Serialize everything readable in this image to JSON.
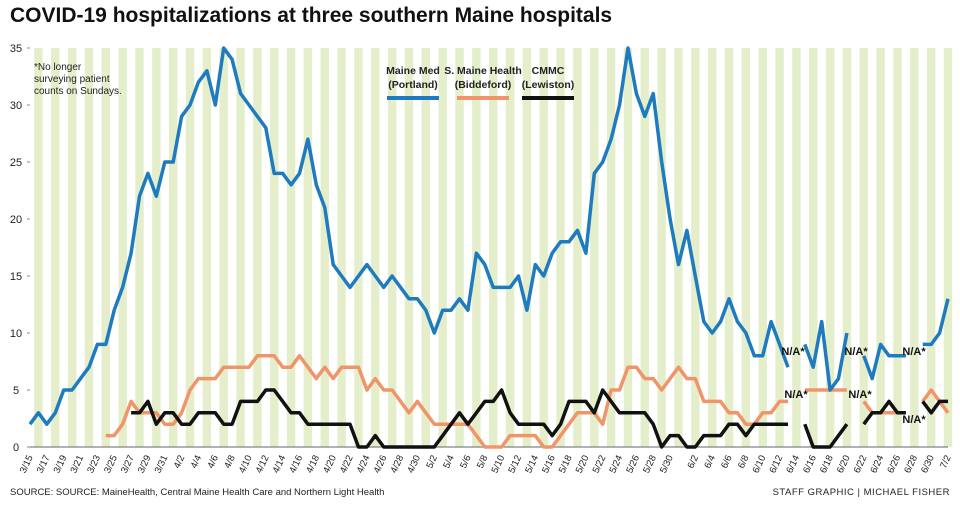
{
  "chart_data": {
    "type": "line",
    "title": "COVID-19 hospitalizations at three southern Maine hospitals",
    "note": "*No longer surveying patient counts on Sundays.",
    "source": "SOURCE: SOURCE: MaineHealth, Central Maine Health Care and Northern Light Health",
    "credit": "STAFF GRAPHIC | MICHAEL FISHER",
    "categories": [
      "3/15",
      null,
      "3/17",
      null,
      "3/19",
      null,
      "3/21",
      null,
      "3/23",
      null,
      "3/25",
      null,
      "3/27",
      null,
      "3/29",
      null,
      "3/31",
      null,
      "4/2",
      null,
      "4/4",
      null,
      "4/6",
      null,
      "4/8",
      null,
      "4/10",
      null,
      "4/12",
      null,
      "4/14",
      null,
      "4/16",
      null,
      "4/18",
      null,
      "4/20",
      null,
      "4/22",
      null,
      "4/24",
      null,
      "4/26",
      null,
      "4/28",
      null,
      "4/30",
      null,
      "5/2",
      null,
      "5/4",
      null,
      "5/6",
      null,
      "5/8",
      null,
      "5/10",
      null,
      "5/12",
      null,
      "5/14",
      null,
      "5/16",
      null,
      "5/18",
      null,
      "5/20",
      null,
      "5/22",
      null,
      "5/24",
      null,
      "5/26",
      null,
      "5/28",
      null,
      "5/30",
      null,
      null,
      "6/2",
      null,
      "6/4",
      null,
      "6/6",
      null,
      "6/8",
      null,
      "6/10",
      null,
      "6/12",
      null,
      "6/14",
      null,
      "6/16",
      null,
      "6/18",
      null,
      "6/20",
      null,
      "6/22",
      null,
      "6/24",
      null,
      "6/26",
      null,
      "6/28",
      null,
      "6/30",
      null,
      "7/2"
    ],
    "series": [
      {
        "name": "Maine Med",
        "location": "(Portland)",
        "color": "#1f7bbf",
        "values": [
          2,
          3,
          2,
          3,
          5,
          5,
          6,
          7,
          9,
          9,
          12,
          14,
          17,
          22,
          24,
          22,
          25,
          25,
          29,
          30,
          32,
          33,
          30,
          35,
          34,
          31,
          30,
          29,
          28,
          24,
          24,
          23,
          24,
          27,
          23,
          21,
          16,
          15,
          14,
          15,
          16,
          15,
          14,
          15,
          14,
          13,
          13,
          12,
          10,
          12,
          12,
          13,
          12,
          17,
          16,
          14,
          14,
          14,
          15,
          12,
          16,
          15,
          17,
          18,
          18,
          19,
          17,
          24,
          25,
          27,
          30,
          35,
          31,
          29,
          31,
          25,
          20,
          16,
          19,
          15,
          11,
          10,
          11,
          13,
          11,
          10,
          8,
          8,
          11,
          9,
          7,
          null,
          9,
          7,
          11,
          5,
          6,
          10,
          null,
          8,
          6,
          9,
          8,
          8,
          8,
          null,
          9,
          9,
          10,
          13
        ]
      },
      {
        "name": "S. Maine Health",
        "location": "(Biddeford)",
        "color": "#f0956a",
        "values": [
          null,
          null,
          null,
          null,
          null,
          null,
          null,
          null,
          null,
          1,
          1,
          2,
          4,
          3,
          3,
          3,
          2,
          2,
          3,
          5,
          6,
          6,
          6,
          7,
          7,
          7,
          7,
          8,
          8,
          8,
          7,
          7,
          8,
          7,
          6,
          7,
          6,
          7,
          7,
          7,
          5,
          6,
          5,
          5,
          4,
          3,
          4,
          3,
          2,
          2,
          2,
          2,
          2,
          1,
          0,
          0,
          0,
          1,
          1,
          1,
          1,
          0,
          0,
          1,
          2,
          3,
          3,
          3,
          2,
          5,
          5,
          7,
          7,
          6,
          6,
          5,
          6,
          7,
          6,
          6,
          4,
          4,
          4,
          3,
          3,
          2,
          2,
          3,
          3,
          4,
          4,
          null,
          5,
          5,
          5,
          5,
          5,
          5,
          null,
          4,
          3,
          3,
          3,
          3,
          3,
          null,
          4,
          5,
          4,
          3
        ]
      },
      {
        "name": "CMMC",
        "location": "(Lewiston)",
        "color": "#111111",
        "values": [
          null,
          null,
          null,
          null,
          null,
          null,
          null,
          null,
          null,
          null,
          null,
          null,
          3,
          3,
          4,
          2,
          3,
          3,
          2,
          2,
          3,
          3,
          3,
          2,
          2,
          4,
          4,
          4,
          5,
          5,
          4,
          3,
          3,
          2,
          2,
          2,
          2,
          2,
          2,
          0,
          0,
          1,
          0,
          0,
          0,
          0,
          0,
          0,
          0,
          1,
          2,
          3,
          2,
          3,
          4,
          4,
          5,
          3,
          2,
          2,
          2,
          2,
          1,
          2,
          4,
          4,
          4,
          3,
          5,
          4,
          3,
          3,
          3,
          3,
          2,
          0,
          1,
          1,
          0,
          0,
          1,
          1,
          1,
          2,
          2,
          1,
          2,
          2,
          2,
          2,
          2,
          null,
          2,
          0,
          0,
          0,
          1,
          2,
          null,
          2,
          3,
          3,
          4,
          3,
          3,
          null,
          4,
          3,
          4,
          4
        ]
      }
    ],
    "annotations": [
      "N/A*",
      "N/A*",
      "N/A*",
      "N/A*",
      "N/A*",
      "N/A*"
    ],
    "ylim": [
      0,
      35
    ],
    "yticks": [
      0,
      5,
      10,
      15,
      20,
      25,
      30,
      35
    ],
    "stripes": "#e4eecb"
  }
}
